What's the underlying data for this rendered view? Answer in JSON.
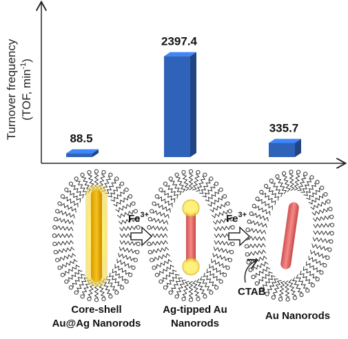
{
  "chart_data": {
    "type": "bar",
    "y_label": {
      "line1": "Turnover frequency",
      "line2": "(TOF, min",
      "sup": "-1",
      "end": ")"
    },
    "categories": [
      null,
      null,
      null
    ],
    "values": [
      88.5,
      2397.4,
      335.7
    ],
    "color": "#2f63b9",
    "ylim": [
      0,
      3800
    ]
  },
  "illustration": {
    "labels": [
      [
        "Core-shell",
        "Au@Ag Nanorods"
      ],
      [
        "Ag-tipped Au",
        "Nanorods"
      ],
      [
        "Au Nanorods"
      ]
    ],
    "reagent": {
      "base": "Fe",
      "sup": "3+"
    },
    "surfactant": "CTAB"
  }
}
